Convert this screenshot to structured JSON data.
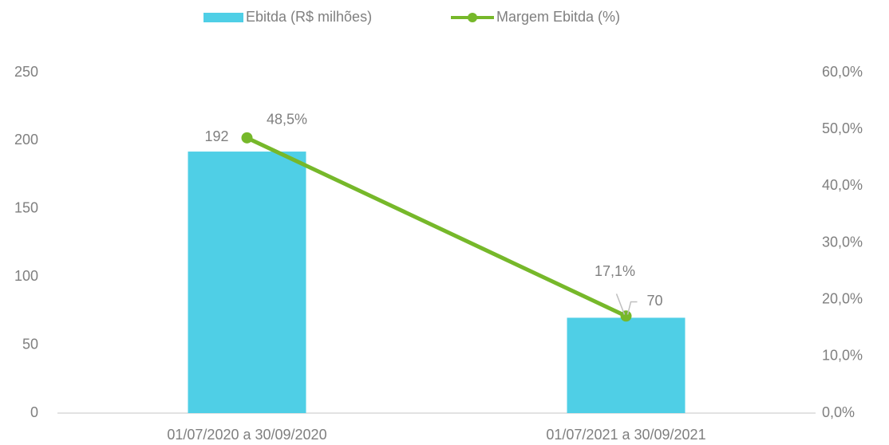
{
  "chart_data": {
    "type": "bar_line",
    "categories": [
      "01/07/2020 a 30/09/2020",
      "01/07/2021 a 30/09/2021"
    ],
    "series": [
      {
        "name": "Ebitda (R$ milhões)",
        "type": "bar",
        "color": "#4fcfe6",
        "values": [
          192,
          70
        ]
      },
      {
        "name": "Margem Ebitda (%)",
        "type": "line",
        "color": "#76b82a",
        "axis": "y2",
        "values": [
          48.5,
          17.1
        ],
        "value_labels": [
          "48,5%",
          "17,1%"
        ]
      }
    ],
    "ylim": [
      0,
      250
    ],
    "yticks": [
      0,
      50,
      100,
      150,
      200,
      250
    ],
    "y2lim": [
      0,
      60
    ],
    "y2ticks": [
      {
        "value": 0,
        "label": "0,0%"
      },
      {
        "value": 10,
        "label": "10,0%"
      },
      {
        "value": 20,
        "label": "20,0%"
      },
      {
        "value": 30,
        "label": "30,0%"
      },
      {
        "value": 40,
        "label": "40,0%"
      },
      {
        "value": 50,
        "label": "50,0%"
      },
      {
        "value": 60,
        "label": "60,0%"
      }
    ],
    "legend": "top",
    "grid": false
  }
}
